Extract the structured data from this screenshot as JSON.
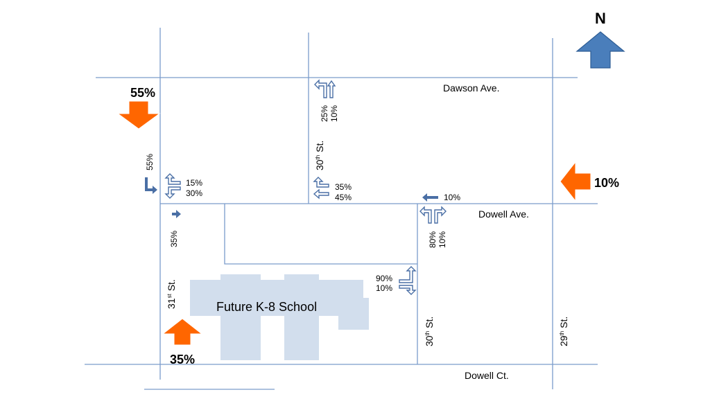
{
  "north": {
    "label": "N"
  },
  "streets": {
    "dawson": "Dawson Ave.",
    "dowell_ave": "Dowell Ave.",
    "dowell_ct": "Dowell Ct.",
    "st30_top": {
      "num": "30",
      "sup": "th",
      "suffix": " St."
    },
    "st30_bottom": {
      "num": "30",
      "sup": "th",
      "suffix": " St."
    },
    "st31": {
      "num": "31",
      "sup": "st",
      "suffix": " St."
    },
    "st29": {
      "num": "29",
      "sup": "th",
      "suffix": " St."
    }
  },
  "school": {
    "label": "Future K-8 School"
  },
  "distribution": {
    "north": "55%",
    "east": "10%",
    "south": "35%"
  },
  "movements": {
    "st31_sb_right": "55%",
    "st31_dawsonwb_left": "15%",
    "st31_dawsonwb_right": "30%",
    "st31_nb_right": "35%",
    "st30_dawson_left": "25%",
    "st30_dawson_thru": "10%",
    "st30_dowell_left": "35%",
    "st30_dowell_thru": "45%",
    "dowell_wb_thru": "10%",
    "st30_south_left": "80%",
    "st30_south_right": "10%",
    "school_exit_left": "90%",
    "school_exit_right": "10%"
  },
  "colors": {
    "road": "#7a9ccb",
    "school": "#d2deed",
    "orange_arrow": "#ff6600",
    "blue_arrow": "#4a7ebb"
  }
}
